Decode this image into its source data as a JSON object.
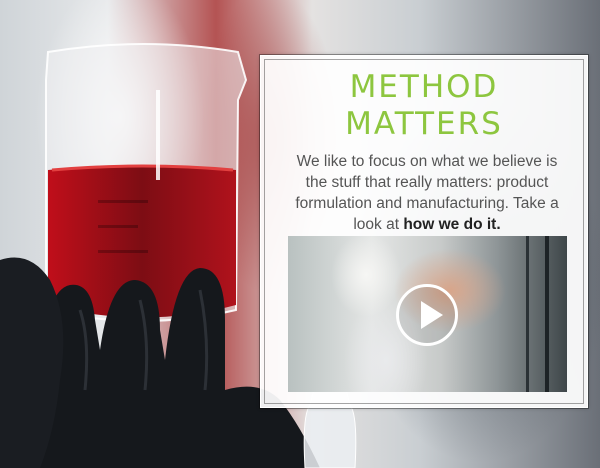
{
  "promo": {
    "title_line1": "METHOD",
    "title_line2": "MATTERS",
    "description": "We like to focus on what we believe is the stuff that really matters: product formulation and manufacturing. Take a look at",
    "link_text": "how we do it.",
    "video": {
      "play_icon": "play-icon"
    }
  },
  "colors": {
    "accent_green": "#8dc63f",
    "text_gray": "#555555"
  }
}
